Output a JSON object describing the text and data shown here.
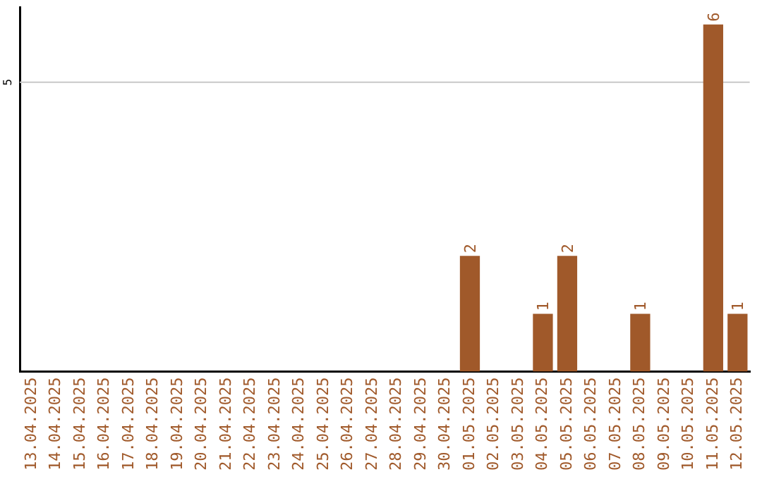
{
  "chart_data": {
    "type": "bar",
    "categories": [
      "13.04.2025",
      "14.04.2025",
      "15.04.2025",
      "16.04.2025",
      "17.04.2025",
      "18.04.2025",
      "19.04.2025",
      "20.04.2025",
      "21.04.2025",
      "22.04.2025",
      "23.04.2025",
      "24.04.2025",
      "25.04.2025",
      "26.04.2025",
      "27.04.2025",
      "28.04.2025",
      "29.04.2025",
      "30.04.2025",
      "01.05.2025",
      "02.05.2025",
      "03.05.2025",
      "04.05.2025",
      "05.05.2025",
      "06.05.2025",
      "07.05.2025",
      "08.05.2025",
      "09.05.2025",
      "10.05.2025",
      "11.05.2025",
      "12.05.2025"
    ],
    "values": [
      null,
      null,
      null,
      null,
      null,
      null,
      null,
      null,
      null,
      null,
      null,
      null,
      null,
      null,
      null,
      null,
      null,
      null,
      2,
      null,
      null,
      1,
      2,
      null,
      null,
      1,
      null,
      null,
      6,
      1
    ],
    "data_labels": true,
    "ylim": [
      0,
      6.3
    ],
    "ref_lines": [
      {
        "axis": "y",
        "value": 5,
        "label": "5",
        "color": "#c8c8c8"
      }
    ],
    "color": "#a0592a",
    "legend": false
  }
}
